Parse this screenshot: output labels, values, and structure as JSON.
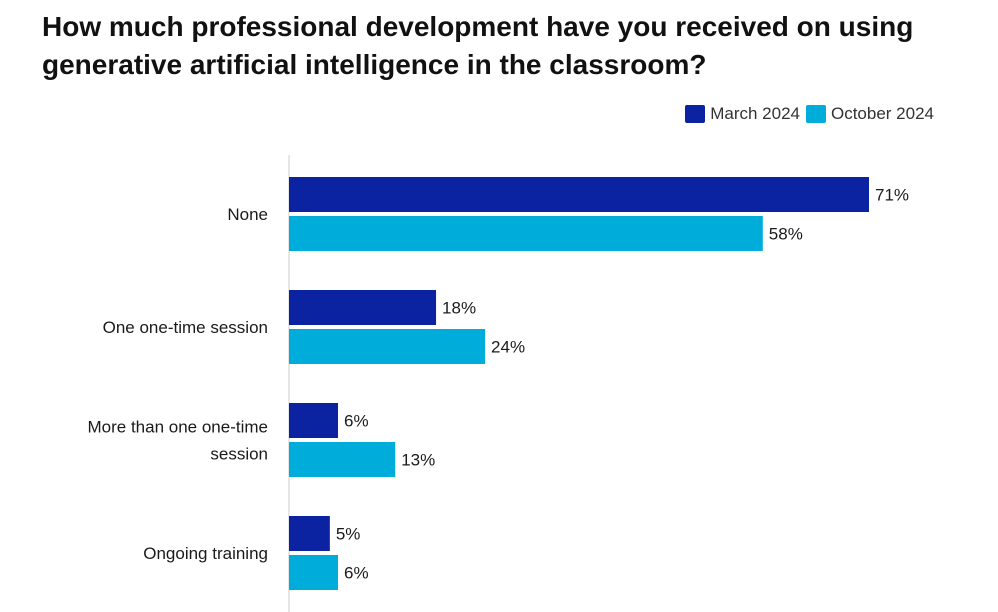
{
  "chart_data": {
    "type": "bar",
    "orientation": "horizontal",
    "title": "How much professional development have you received on using generative artificial intelligence in the classroom?",
    "categories": [
      [
        "None"
      ],
      [
        "One one-time session"
      ],
      [
        "More than one one-time",
        "session"
      ],
      [
        "Ongoing training"
      ]
    ],
    "series": [
      {
        "name": "March 2024",
        "color": "#0b23a0",
        "values": [
          71,
          18,
          6,
          5
        ],
        "labels": [
          "71%",
          "18%",
          "6%",
          "5%"
        ]
      },
      {
        "name": "October 2024",
        "color": "#00acd9",
        "values": [
          58,
          24,
          13,
          6
        ],
        "labels": [
          "58%",
          "24%",
          "13%",
          "6%"
        ]
      }
    ],
    "xlim": [
      0,
      71
    ],
    "legend_position": "top-right",
    "grid": false,
    "axis_line_color": "#cccccc"
  }
}
